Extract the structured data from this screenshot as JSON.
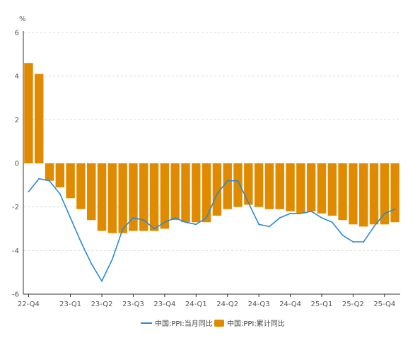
{
  "chart_data": {
    "type": "bar",
    "unit_label": "%",
    "ylim": [
      -6,
      6
    ],
    "y_ticks": [
      -6,
      -4,
      -2,
      0,
      2,
      4,
      6
    ],
    "grid": true,
    "legend_position": "bottom-center",
    "colors": {
      "line": "#2a8ad4",
      "bar": "#e08a00",
      "grid": "#d9d9d9",
      "axis": "#333333"
    },
    "x_tick_labels": [
      {
        "index": 0,
        "label": "22-Q4"
      },
      {
        "index": 4,
        "label": "23-Q1"
      },
      {
        "index": 7,
        "label": "23-Q2"
      },
      {
        "index": 10,
        "label": "23-Q3"
      },
      {
        "index": 13,
        "label": "23-Q4"
      },
      {
        "index": 16,
        "label": "24-Q1"
      },
      {
        "index": 19,
        "label": "24-Q2"
      },
      {
        "index": 22,
        "label": "24-Q3"
      },
      {
        "index": 25,
        "label": "24-Q4"
      },
      {
        "index": 28,
        "label": "25-Q1"
      },
      {
        "index": 31,
        "label": "25-Q2"
      },
      {
        "index": 34,
        "label": "25-Q4"
      }
    ],
    "series": [
      {
        "name": "中国:PPI:当月同比",
        "type": "line",
        "values": [
          -1.3,
          -0.7,
          -0.8,
          -1.4,
          -2.5,
          -3.6,
          -4.6,
          -5.4,
          -4.4,
          -3.0,
          -2.5,
          -2.6,
          -3.0,
          -2.7,
          -2.5,
          -2.7,
          -2.8,
          -2.5,
          -1.4,
          -0.8,
          -0.8,
          -1.8,
          -2.8,
          -2.9,
          -2.5,
          -2.3,
          -2.3,
          -2.2,
          -2.5,
          -2.7,
          -3.3,
          -3.6,
          -3.6,
          -2.9,
          -2.3,
          -2.1
        ]
      },
      {
        "name": "中国:PPI:累计同比",
        "type": "bar",
        "values": [
          4.6,
          4.1,
          -0.8,
          -1.1,
          -1.6,
          -2.1,
          -2.6,
          -3.1,
          -3.2,
          -3.2,
          -3.1,
          -3.1,
          -3.1,
          -3.0,
          -2.6,
          -2.7,
          -2.7,
          -2.7,
          -2.4,
          -2.1,
          -2.0,
          -1.9,
          -2.0,
          -2.1,
          -2.1,
          -2.2,
          -2.3,
          -2.2,
          -2.3,
          -2.4,
          -2.6,
          -2.8,
          -2.9,
          -2.8,
          -2.8,
          -2.7
        ]
      }
    ]
  }
}
